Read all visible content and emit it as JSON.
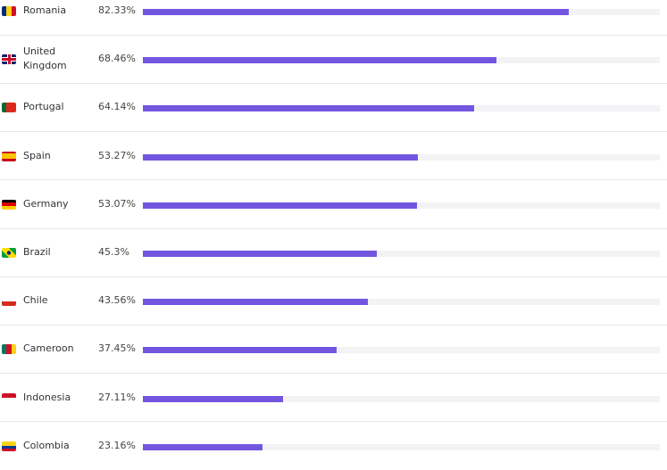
{
  "chart_data": {
    "type": "bar",
    "categories": [
      "Romania",
      "United Kingdom",
      "Portugal",
      "Spain",
      "Germany",
      "Brazil",
      "Chile",
      "Cameroon",
      "Indonesia",
      "Colombia"
    ],
    "values": [
      82.33,
      68.46,
      64.14,
      53.27,
      53.07,
      45.3,
      43.56,
      37.45,
      27.11,
      23.16
    ],
    "value_labels": [
      "82.33%",
      "68.46%",
      "64.14%",
      "53.27%",
      "53.07%",
      "45.3%",
      "43.56%",
      "37.45%",
      "27.11%",
      "23.16%"
    ],
    "xlim": [
      0,
      100
    ],
    "color": "#7356e0"
  }
}
